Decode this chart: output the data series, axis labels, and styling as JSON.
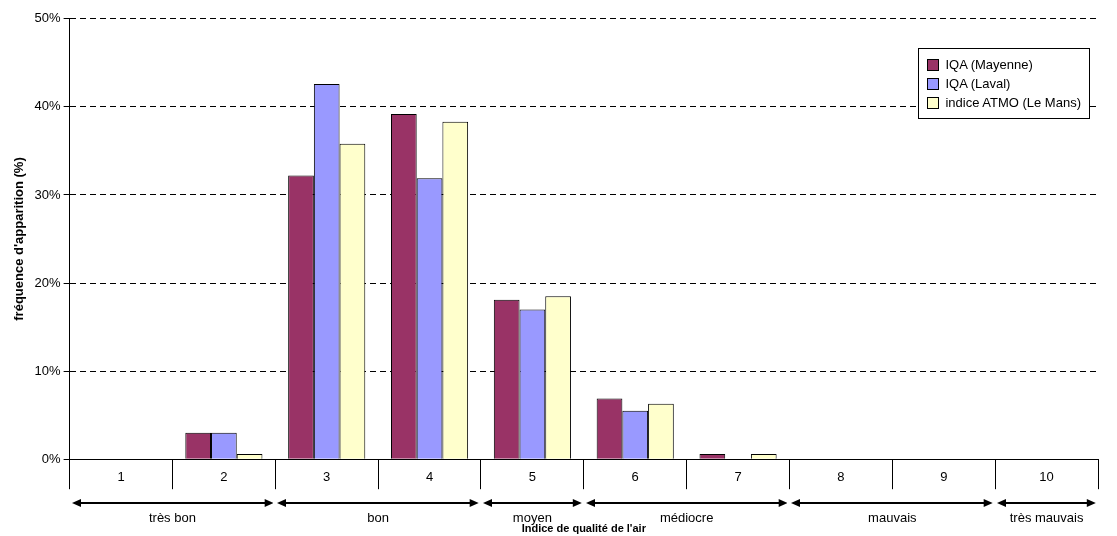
{
  "chart_data": {
    "type": "bar",
    "xlabel": "Indice de qualité de l'air",
    "ylabel": "fréquence d'apparition (%)",
    "categories": [
      "1",
      "2",
      "3",
      "4",
      "5",
      "6",
      "7",
      "8",
      "9",
      "10"
    ],
    "series": [
      {
        "name": "IQA (Mayenne)",
        "color": "#993366",
        "values": [
          0,
          3.0,
          32.2,
          39.2,
          18.1,
          6.9,
          0.6,
          0,
          0,
          0
        ]
      },
      {
        "name": "IQA (Laval)",
        "color": "#9999ff",
        "values": [
          0,
          3.0,
          42.6,
          31.9,
          17.0,
          5.5,
          0,
          0,
          0,
          0
        ]
      },
      {
        "name": "indice ATMO (Le Mans)",
        "color": "#ffffcc",
        "values": [
          0,
          0.6,
          35.8,
          38.3,
          18.5,
          6.3,
          0.6,
          0,
          0,
          0
        ]
      }
    ],
    "ylim": [
      0,
      50
    ],
    "yticks": [
      {
        "value": 0,
        "label": "0%"
      },
      {
        "value": 10,
        "label": "10%"
      },
      {
        "value": 20,
        "label": "20%"
      },
      {
        "value": 30,
        "label": "30%"
      },
      {
        "value": 40,
        "label": "40%"
      },
      {
        "value": 50,
        "label": "50%"
      }
    ],
    "grid": "y",
    "legend": "top right",
    "annotations": [
      "très bon",
      "bon",
      "moyen",
      "médiocre",
      "mauvais",
      "très mauvais"
    ]
  }
}
